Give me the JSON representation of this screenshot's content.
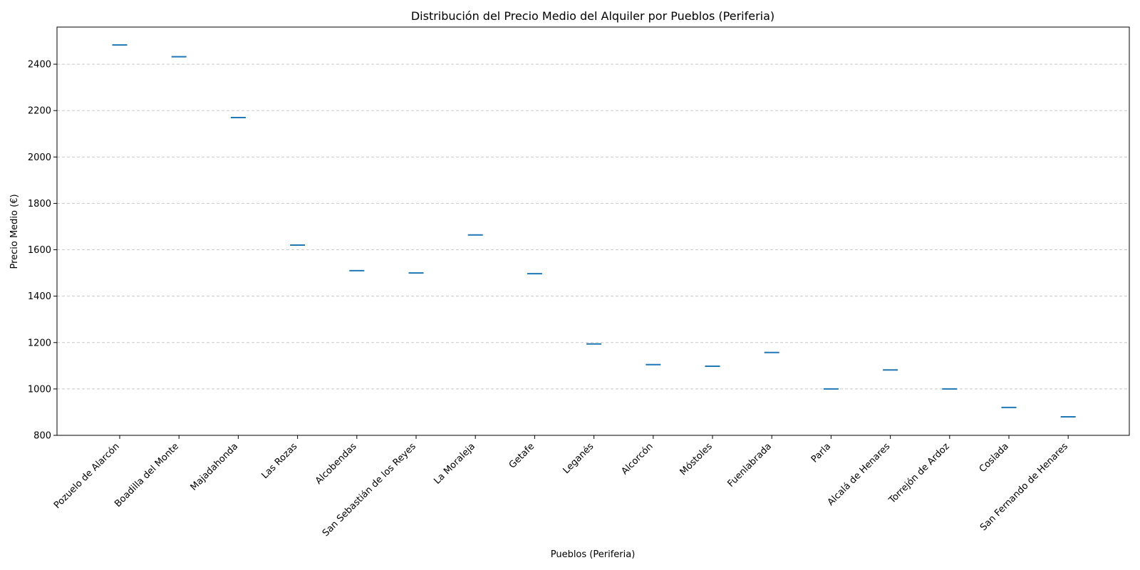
{
  "chart_data": {
    "type": "box",
    "title": "Distribución del Precio Medio del Alquiler por Pueblos (Periferia)",
    "xlabel": "Pueblos (Periferia)",
    "ylabel": "Precio Medio (€)",
    "ylim": [
      800,
      2560
    ],
    "yticks": [
      800,
      1000,
      1200,
      1400,
      1600,
      1800,
      2000,
      2200,
      2400
    ],
    "grid": "y-dashed",
    "color": "#1f77b4",
    "categories": [
      "Pozuelo de Alarcón",
      "Boadilla del Monte",
      "Majadahonda",
      "Las Rozas",
      "Alcobendas",
      "San Sebastián de los Reyes",
      "La Moraleja",
      "Getafe",
      "Leganés",
      "Alcorcón",
      "Móstoles",
      "Fuenlabrada",
      "Parla",
      "Alcalá de Henares",
      "Torrejón de Ardoz",
      "Coslada",
      "San Fernando de Henares"
    ],
    "values": [
      2483,
      2432,
      2170,
      1620,
      1510,
      1500,
      1664,
      1497,
      1194,
      1105,
      1098,
      1157,
      1000,
      1082,
      1000,
      920,
      880
    ]
  }
}
